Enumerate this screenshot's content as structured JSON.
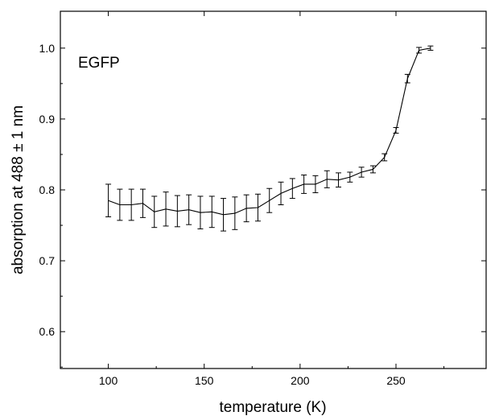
{
  "chart_data": {
    "type": "line",
    "xlabel": "temperature (K)",
    "ylabel": "absorption at 488 ± 1 nm",
    "annotation": "EGFP",
    "xlim": [
      75,
      297
    ],
    "ylim": [
      0.548,
      1.052
    ],
    "x_ticks": [
      100,
      150,
      200,
      250
    ],
    "x_tick_labels": [
      "100",
      "150",
      "200",
      "250"
    ],
    "y_ticks": [
      0.6,
      0.7,
      0.8,
      0.9,
      1.0
    ],
    "y_tick_labels": [
      "0.6",
      "0.7",
      "0.8",
      "0.9",
      "1.0"
    ],
    "grid": false,
    "series": [
      {
        "line_color": "#000000",
        "points": [
          {
            "x": 100,
            "y": 0.785,
            "err": 0.023
          },
          {
            "x": 106,
            "y": 0.779,
            "err": 0.022
          },
          {
            "x": 112,
            "y": 0.779,
            "err": 0.022
          },
          {
            "x": 118,
            "y": 0.781,
            "err": 0.02
          },
          {
            "x": 124,
            "y": 0.769,
            "err": 0.022
          },
          {
            "x": 130,
            "y": 0.773,
            "err": 0.024
          },
          {
            "x": 136,
            "y": 0.77,
            "err": 0.022
          },
          {
            "x": 142,
            "y": 0.772,
            "err": 0.021
          },
          {
            "x": 148,
            "y": 0.768,
            "err": 0.023
          },
          {
            "x": 154,
            "y": 0.769,
            "err": 0.022
          },
          {
            "x": 160,
            "y": 0.765,
            "err": 0.023
          },
          {
            "x": 166,
            "y": 0.767,
            "err": 0.023
          },
          {
            "x": 172,
            "y": 0.774,
            "err": 0.019
          },
          {
            "x": 178,
            "y": 0.775,
            "err": 0.019
          },
          {
            "x": 184,
            "y": 0.785,
            "err": 0.017
          },
          {
            "x": 190,
            "y": 0.795,
            "err": 0.016
          },
          {
            "x": 196,
            "y": 0.802,
            "err": 0.014
          },
          {
            "x": 202,
            "y": 0.808,
            "err": 0.013
          },
          {
            "x": 208,
            "y": 0.808,
            "err": 0.012
          },
          {
            "x": 214,
            "y": 0.815,
            "err": 0.012
          },
          {
            "x": 220,
            "y": 0.814,
            "err": 0.01
          },
          {
            "x": 226,
            "y": 0.818,
            "err": 0.007
          },
          {
            "x": 232,
            "y": 0.825,
            "err": 0.007
          },
          {
            "x": 238,
            "y": 0.829,
            "err": 0.005
          },
          {
            "x": 244,
            "y": 0.846,
            "err": 0.005
          },
          {
            "x": 250,
            "y": 0.884,
            "err": 0.004
          },
          {
            "x": 256,
            "y": 0.957,
            "err": 0.006
          },
          {
            "x": 262,
            "y": 0.997,
            "err": 0.004
          },
          {
            "x": 268,
            "y": 1.0,
            "err": 0.003
          }
        ]
      }
    ]
  }
}
